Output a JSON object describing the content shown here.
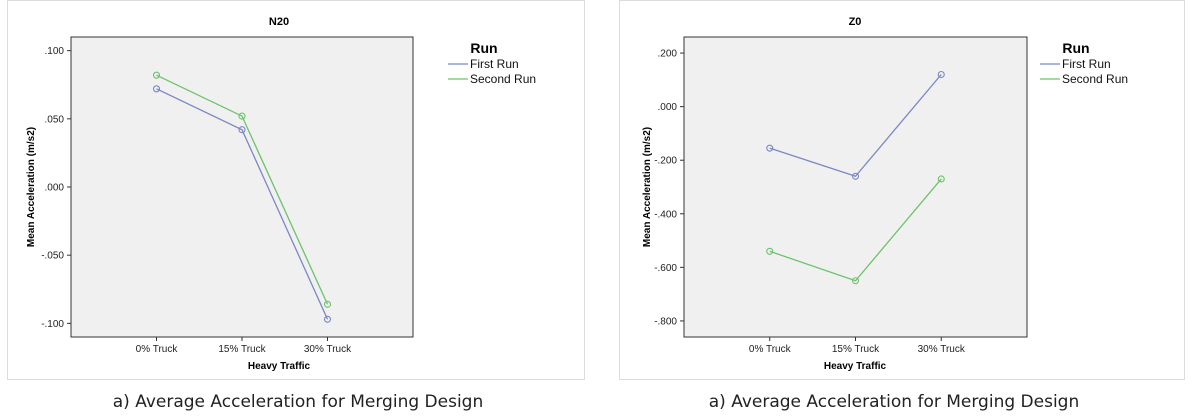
{
  "captions": [
    "a) Average Acceleration for Merging Design",
    "a) Average Acceleration for Merging Design"
  ],
  "colors": {
    "plot_bg": "#f0f0f0",
    "series_1": "#7b86c6",
    "series_2": "#6cc36c"
  },
  "chart_data": [
    {
      "type": "line",
      "title": "N20",
      "xlabel": "Heavy Traffic",
      "ylabel": "Mean Acceleration (m/s2)",
      "categories": [
        "0% Truck",
        "15% Truck",
        "30% Truck"
      ],
      "ylim": [
        -0.11,
        0.11
      ],
      "yticks": [
        0.1,
        0.05,
        0.0,
        -0.05,
        -0.1
      ],
      "ytick_labels": [
        ".100",
        ".050",
        ".000",
        "-.050",
        "-.100"
      ],
      "legend_title": "Run",
      "legend_position": "right",
      "grid": false,
      "series": [
        {
          "name": "First Run",
          "values": [
            0.072,
            0.042,
            -0.097
          ]
        },
        {
          "name": "Second Run",
          "values": [
            0.082,
            0.052,
            -0.086
          ]
        }
      ]
    },
    {
      "type": "line",
      "title": "Z0",
      "xlabel": "Heavy Traffic",
      "ylabel": "Mean Acceleration (m/s2)",
      "categories": [
        "0% Truck",
        "15% Truck",
        "30% Truck"
      ],
      "ylim": [
        -0.86,
        0.26
      ],
      "yticks": [
        0.2,
        0.0,
        -0.2,
        -0.4,
        -0.6,
        -0.8
      ],
      "ytick_labels": [
        ".200",
        ".000",
        "-.200",
        "-.400",
        "-.600",
        "-.800"
      ],
      "legend_title": "Run",
      "legend_position": "right",
      "grid": false,
      "series": [
        {
          "name": "First Run",
          "values": [
            -0.155,
            -0.26,
            0.12
          ]
        },
        {
          "name": "Second Run",
          "values": [
            -0.54,
            -0.65,
            -0.27
          ]
        }
      ]
    }
  ]
}
